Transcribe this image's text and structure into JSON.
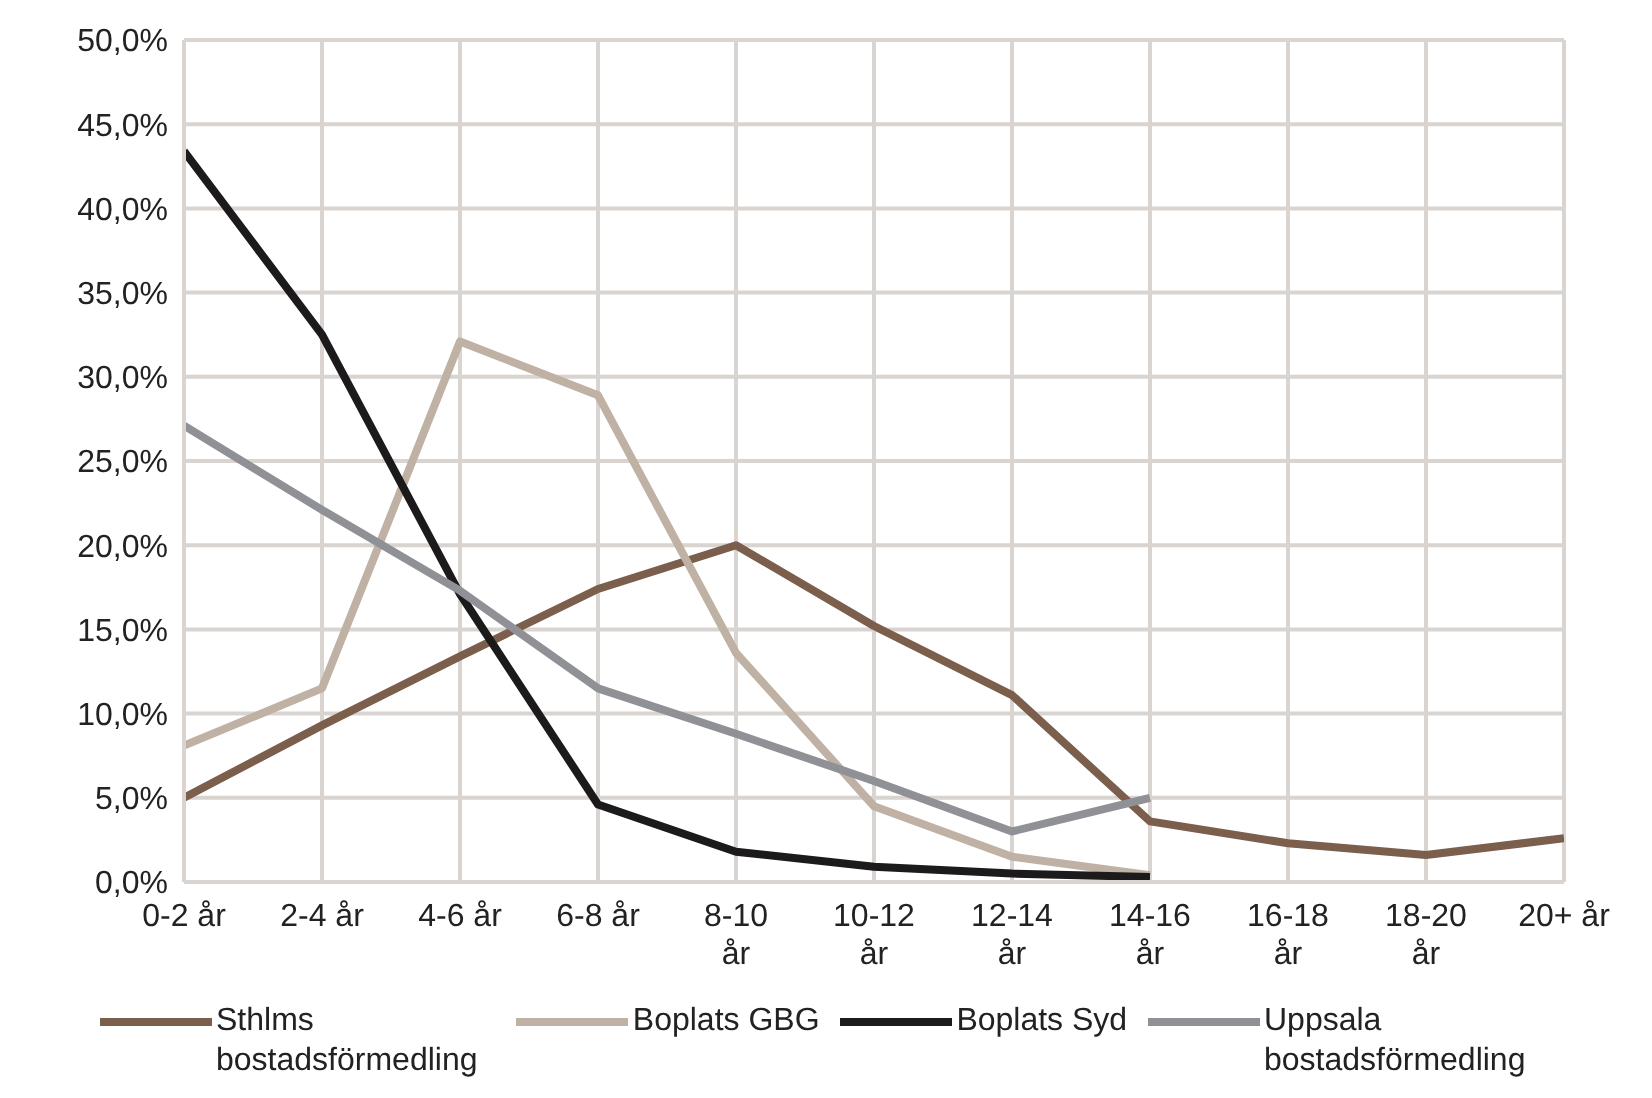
{
  "chart_data": {
    "type": "line",
    "categories": [
      "0-2 år",
      "2-4 år",
      "4-6 år",
      "6-8 år",
      "8-10 år",
      "10-12 år",
      "12-14 år",
      "14-16 år",
      "16-18 år",
      "18-20 år",
      "20+ år"
    ],
    "series": [
      {
        "name": "Sthlms bostadsförmedling",
        "color": "#7b5e4b",
        "values": [
          5.0,
          9.3,
          13.4,
          17.4,
          20.0,
          15.2,
          11.1,
          3.6,
          2.3,
          1.6,
          2.6
        ]
      },
      {
        "name": "Boplats GBG",
        "color": "#bfb1a4",
        "values": [
          8.1,
          11.5,
          32.1,
          28.9,
          13.6,
          4.5,
          1.5,
          0.4,
          null,
          null,
          null
        ]
      },
      {
        "name": "Boplats Syd",
        "color": "#1c1a1a",
        "values": [
          43.4,
          32.5,
          17.1,
          4.6,
          1.8,
          0.9,
          0.5,
          0.3,
          null,
          null,
          null
        ]
      },
      {
        "name": "Uppsala bostadsförmedling",
        "color": "#8f9196",
        "values": [
          27.1,
          22.1,
          17.3,
          11.5,
          8.8,
          6.0,
          3.0,
          5.0,
          null,
          null,
          null
        ]
      }
    ],
    "ylim": [
      0,
      50
    ],
    "yticks": [
      {
        "value": 0,
        "label": "0,0%"
      },
      {
        "value": 5,
        "label": "5,0%"
      },
      {
        "value": 10,
        "label": "10,0%"
      },
      {
        "value": 15,
        "label": "15,0%"
      },
      {
        "value": 20,
        "label": "20,0%"
      },
      {
        "value": 25,
        "label": "25,0%"
      },
      {
        "value": 30,
        "label": "30,0%"
      },
      {
        "value": 35,
        "label": "35,0%"
      },
      {
        "value": 40,
        "label": "40,0%"
      },
      {
        "value": 45,
        "label": "45,0%"
      },
      {
        "value": 50,
        "label": "50,0%"
      }
    ],
    "grid": true,
    "legend": "bottom",
    "line_style": "solid",
    "marker": "none"
  }
}
